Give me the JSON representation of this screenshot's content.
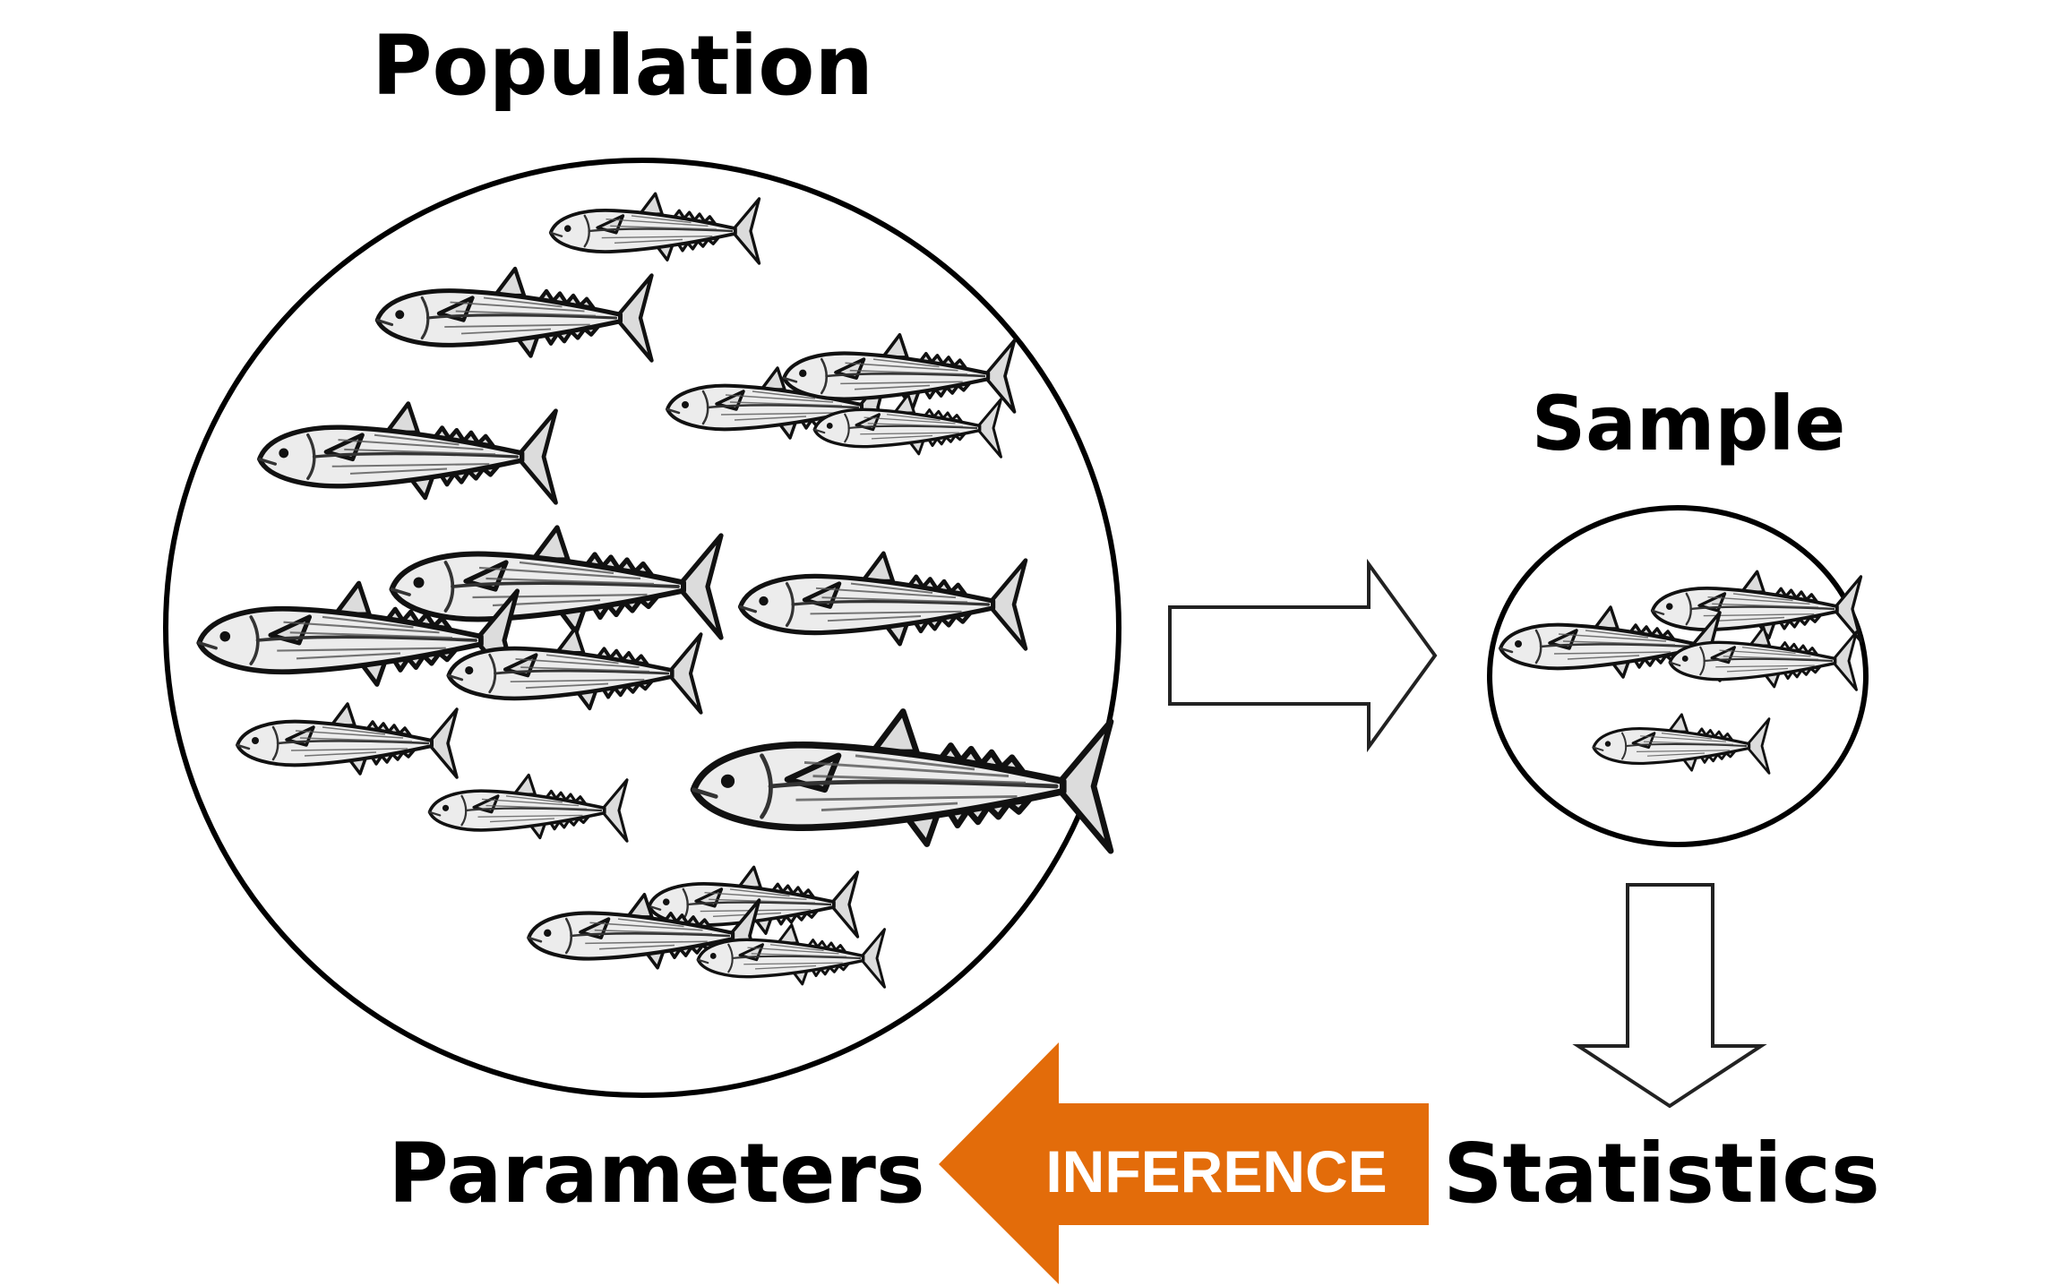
{
  "labels": {
    "population": "Population",
    "sample": "Sample",
    "parameters": "Parameters",
    "statistics": "Statistics",
    "inference": "INFERENCE"
  },
  "colors": {
    "inference_arrow": "#E36C0A",
    "outline": "#000000"
  },
  "icons": {
    "fish": "fish-icon",
    "right_arrow": "hollow-right-arrow-icon",
    "down_arrow": "hollow-down-arrow-icon",
    "left_arrow": "inference-left-arrow-icon"
  }
}
